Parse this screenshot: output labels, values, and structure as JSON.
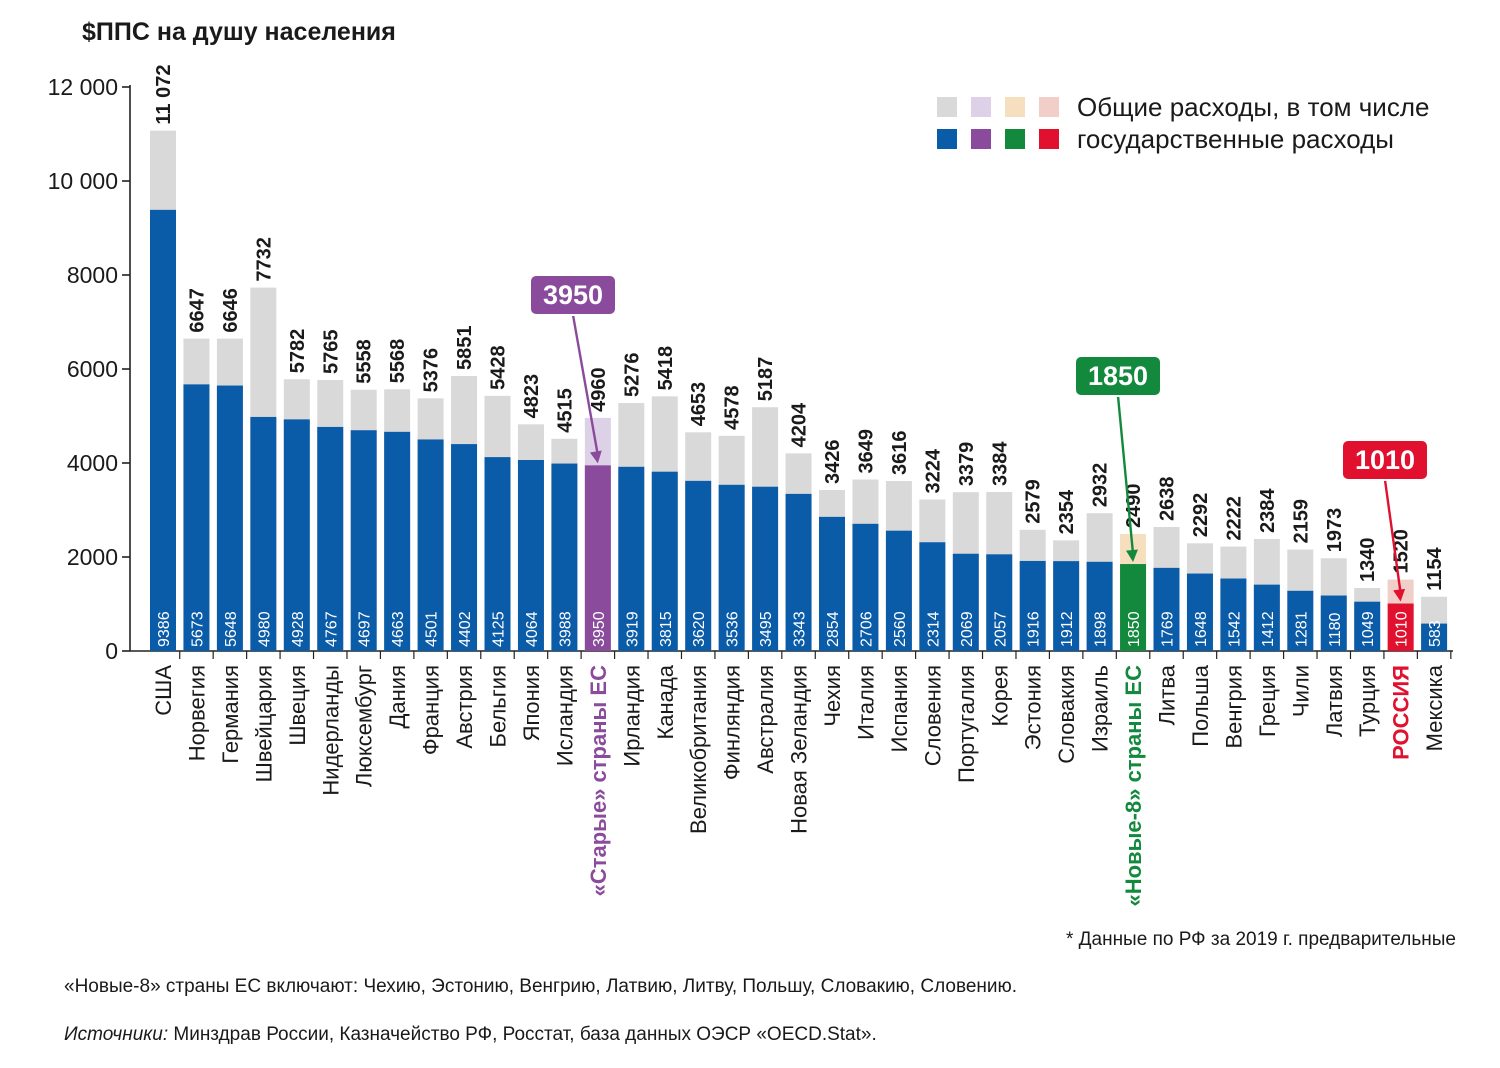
{
  "chart_data": {
    "type": "bar",
    "stacked_overlay": true,
    "ylabel": "$ППС на душу населения",
    "ylim": [
      0,
      12000
    ],
    "yticks": [
      {
        "value": 0,
        "label": "0"
      },
      {
        "value": 2000,
        "label": "2000"
      },
      {
        "value": 4000,
        "label": "4000"
      },
      {
        "value": 6000,
        "label": "6000"
      },
      {
        "value": 8000,
        "label": "8000"
      },
      {
        "value": 10000,
        "label": "10 000"
      },
      {
        "value": 12000,
        "label": "12 000"
      }
    ],
    "grid": false,
    "legend_position": "top-right",
    "series": [
      {
        "name": "Общие расходы, в том числе"
      },
      {
        "name": "государственные расходы"
      }
    ],
    "categories": [
      {
        "name": "США",
        "total": 11072,
        "total_label": "11 072",
        "public": 9386,
        "group": "normal"
      },
      {
        "name": "Норвегия",
        "total": 6647,
        "total_label": "6647",
        "public": 5673,
        "group": "normal"
      },
      {
        "name": "Германия",
        "total": 6646,
        "total_label": "6646",
        "public": 5648,
        "group": "normal"
      },
      {
        "name": "Швейцария",
        "total": 7732,
        "total_label": "7732",
        "public": 4980,
        "group": "normal"
      },
      {
        "name": "Швеция",
        "total": 5782,
        "total_label": "5782",
        "public": 4928,
        "group": "normal"
      },
      {
        "name": "Нидерланды",
        "total": 5765,
        "total_label": "5765",
        "public": 4767,
        "group": "normal"
      },
      {
        "name": "Люксембург",
        "total": 5558,
        "total_label": "5558",
        "public": 4697,
        "group": "normal"
      },
      {
        "name": "Дания",
        "total": 5568,
        "total_label": "5568",
        "public": 4663,
        "group": "normal"
      },
      {
        "name": "Франция",
        "total": 5376,
        "total_label": "5376",
        "public": 4501,
        "group": "normal"
      },
      {
        "name": "Австрия",
        "total": 5851,
        "total_label": "5851",
        "public": 4402,
        "group": "normal"
      },
      {
        "name": "Бельгия",
        "total": 5428,
        "total_label": "5428",
        "public": 4125,
        "group": "normal"
      },
      {
        "name": "Япония",
        "total": 4823,
        "total_label": "4823",
        "public": 4064,
        "group": "normal"
      },
      {
        "name": "Исландия",
        "total": 4515,
        "total_label": "4515",
        "public": 3988,
        "group": "normal"
      },
      {
        "name": "«Старые» страны ЕС",
        "total": 4960,
        "total_label": "4960",
        "public": 3950,
        "group": "old_eu"
      },
      {
        "name": "Ирландия",
        "total": 5276,
        "total_label": "5276",
        "public": 3919,
        "group": "normal"
      },
      {
        "name": "Канада",
        "total": 5418,
        "total_label": "5418",
        "public": 3815,
        "group": "normal"
      },
      {
        "name": "Великобритания",
        "total": 4653,
        "total_label": "4653",
        "public": 3620,
        "group": "normal"
      },
      {
        "name": "Финляндия",
        "total": 4578,
        "total_label": "4578",
        "public": 3536,
        "group": "normal"
      },
      {
        "name": "Австралия",
        "total": 5187,
        "total_label": "5187",
        "public": 3495,
        "group": "normal"
      },
      {
        "name": "Новая Зеландия",
        "total": 4204,
        "total_label": "4204",
        "public": 3343,
        "group": "normal"
      },
      {
        "name": "Чехия",
        "total": 3426,
        "total_label": "3426",
        "public": 2854,
        "group": "normal"
      },
      {
        "name": "Италия",
        "total": 3649,
        "total_label": "3649",
        "public": 2706,
        "group": "normal"
      },
      {
        "name": "Испания",
        "total": 3616,
        "total_label": "3616",
        "public": 2560,
        "group": "normal"
      },
      {
        "name": "Словения",
        "total": 3224,
        "total_label": "3224",
        "public": 2314,
        "group": "normal"
      },
      {
        "name": "Португалия",
        "total": 3379,
        "total_label": "3379",
        "public": 2069,
        "group": "normal"
      },
      {
        "name": "Корея",
        "total": 3384,
        "total_label": "3384",
        "public": 2057,
        "group": "normal"
      },
      {
        "name": "Эстония",
        "total": 2579,
        "total_label": "2579",
        "public": 1916,
        "group": "normal"
      },
      {
        "name": "Словакия",
        "total": 2354,
        "total_label": "2354",
        "public": 1912,
        "group": "normal"
      },
      {
        "name": "Израиль",
        "total": 2932,
        "total_label": "2932",
        "public": 1898,
        "group": "normal"
      },
      {
        "name": "«Новые-8» страны ЕС",
        "total": 2490,
        "total_label": "2490",
        "public": 1850,
        "group": "new8"
      },
      {
        "name": "Литва",
        "total": 2638,
        "total_label": "2638",
        "public": 1769,
        "group": "normal"
      },
      {
        "name": "Польша",
        "total": 2292,
        "total_label": "2292",
        "public": 1648,
        "group": "normal"
      },
      {
        "name": "Венгрия",
        "total": 2222,
        "total_label": "2222",
        "public": 1542,
        "group": "normal"
      },
      {
        "name": "Греция",
        "total": 2384,
        "total_label": "2384",
        "public": 1412,
        "group": "normal"
      },
      {
        "name": "Чили",
        "total": 2159,
        "total_label": "2159",
        "public": 1281,
        "group": "normal"
      },
      {
        "name": "Латвия",
        "total": 1973,
        "total_label": "1973",
        "public": 1180,
        "group": "normal"
      },
      {
        "name": "Турция",
        "total": 1340,
        "total_label": "1340",
        "public": 1049,
        "group": "normal"
      },
      {
        "name": "РОССИЯ",
        "total": 1520,
        "total_label": "1520",
        "public": 1010,
        "group": "russia"
      },
      {
        "name": "Мексика",
        "total": 1154,
        "total_label": "1154",
        "public": 583,
        "group": "normal"
      }
    ],
    "callouts": [
      {
        "label": "3950",
        "target": "«Старые» страны ЕС",
        "group": "old_eu"
      },
      {
        "label": "1850",
        "target": "«Новые-8» страны ЕС",
        "group": "new8"
      },
      {
        "label": "1010",
        "target": "РОССИЯ",
        "group": "russia"
      }
    ],
    "colors": {
      "normal": {
        "public": "#0a5ba8",
        "total": "#d9d9d9"
      },
      "old_eu": {
        "public": "#8a4b9c",
        "total": "#ddd1e8",
        "text": "#8a4b9c"
      },
      "new8": {
        "public": "#13893e",
        "total": "#f6dfbf",
        "text": "#13893e"
      },
      "russia": {
        "public": "#e0102e",
        "total": "#f1cfc8",
        "text": "#e0102e"
      }
    }
  },
  "footnotes": {
    "star": "* Данные по РФ за 2019 г. предварительные",
    "new8": "«Новые-8» страны ЕС включают: Чехию, Эстонию, Венгрию, Латвию, Литву, Польшу, Словакию, Словению.",
    "sources_label": "Источники:",
    "sources_text": " Минздрав России, Казначейство РФ, Росстат, база данных ОЭСР «OECD.Stat»."
  }
}
